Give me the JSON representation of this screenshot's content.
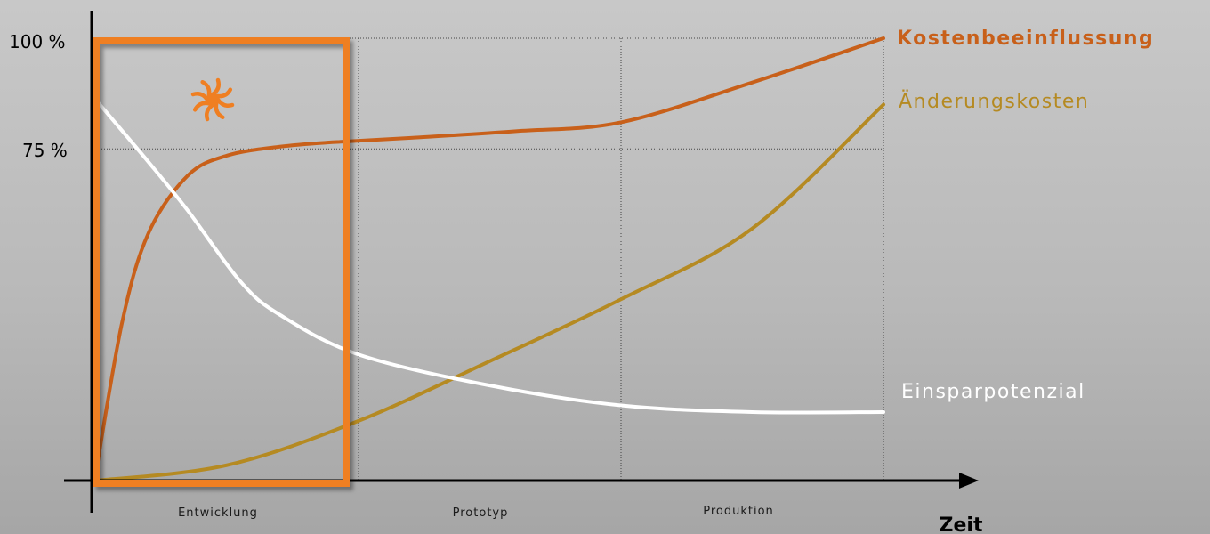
{
  "chart_data": {
    "type": "line",
    "title": "",
    "xlabel": "Zeit",
    "ylabel": "",
    "categories": [
      "Entwicklung",
      "Prototyp",
      "Produktion"
    ],
    "y_ticks": [
      {
        "value": 100,
        "label": "100 %"
      },
      {
        "value": 75,
        "label": "75 %"
      }
    ],
    "ylim": [
      0,
      100
    ],
    "xlim": [
      0,
      3
    ],
    "grid": "dotted reference lines at 100 % and 75 %, dotted phase separators",
    "highlight": {
      "phase": "Entwicklung",
      "color": "#ef7f22"
    },
    "series": [
      {
        "name": "Kostenbeeinflussung",
        "color": "#c8601a",
        "label_bold": true,
        "x": [
          0,
          0.1,
          0.2,
          0.35,
          0.5,
          0.7,
          0.9,
          1.2,
          1.6,
          2.0,
          2.5,
          3.0
        ],
        "y": [
          2,
          36,
          56,
          69,
          73.5,
          75.5,
          76.5,
          77.5,
          79,
          81,
          90,
          100
        ]
      },
      {
        "name": "Änderungskosten",
        "color": "#b58a22",
        "label_bold": false,
        "x": [
          0,
          0.5,
          1.0,
          1.5,
          2.0,
          2.5,
          3.0
        ],
        "y": [
          0,
          3.5,
          13.5,
          27,
          41,
          57,
          85
        ]
      },
      {
        "name": "Einsparpotenzial",
        "color": "#ffffff",
        "label_bold": false,
        "x": [
          0,
          0.2,
          0.35,
          0.55,
          0.7,
          1.0,
          1.5,
          2.0,
          2.5,
          3.0
        ],
        "y": [
          86,
          72,
          61,
          45,
          37.5,
          28.5,
          21.5,
          17,
          15.5,
          15.5
        ]
      }
    ]
  },
  "icons": {
    "highlight_marker": "sun-icon"
  }
}
